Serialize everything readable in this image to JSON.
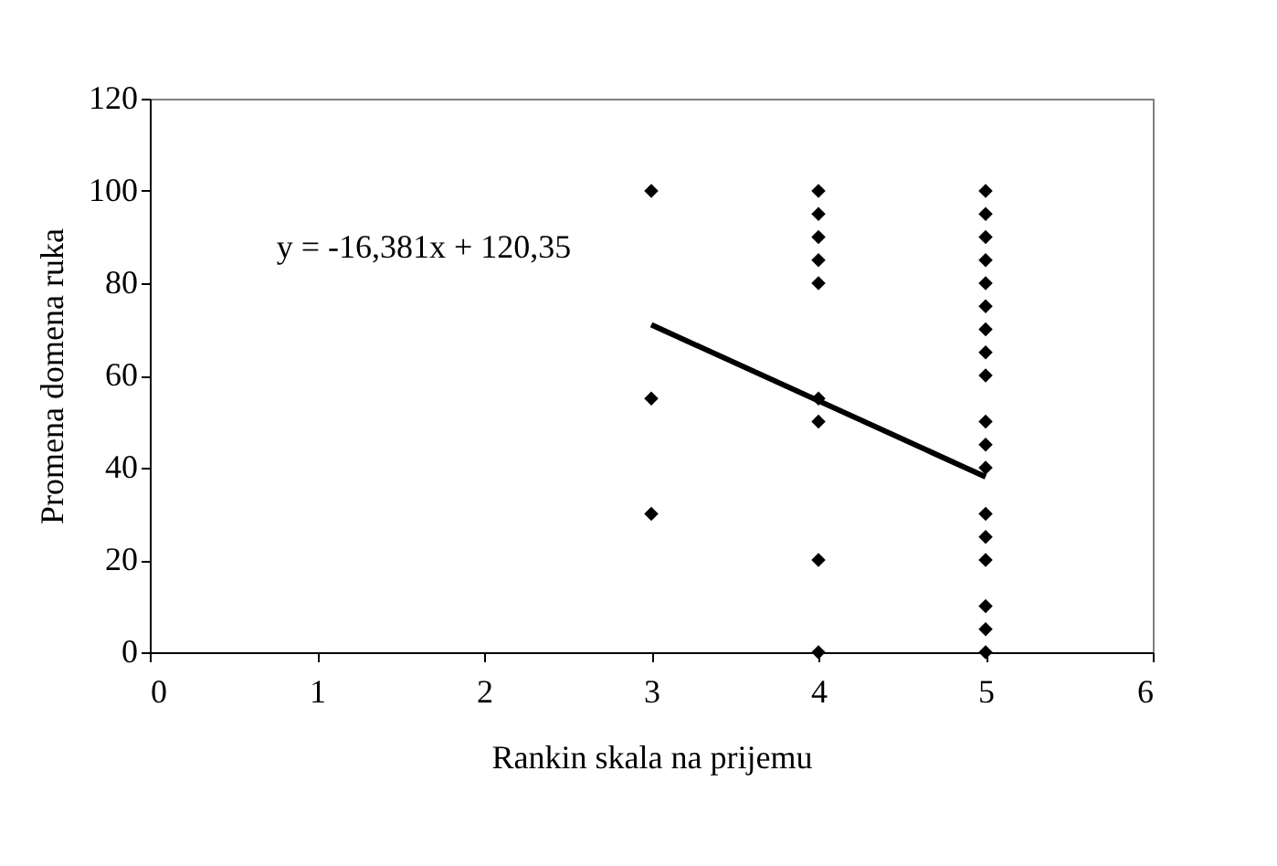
{
  "chart_data": {
    "type": "scatter",
    "xlabel": "Rankin skala na prijemu",
    "ylabel": "Promena domena ruka",
    "xlim": [
      0,
      6
    ],
    "xticks": [
      0,
      1,
      2,
      3,
      4,
      5,
      6
    ],
    "ylim": [
      0,
      120
    ],
    "yticks": [
      0,
      20,
      40,
      60,
      80,
      100,
      120
    ],
    "grid": false,
    "annotations": [
      "y = -16,381x + 120,35"
    ],
    "series": [
      {
        "color": "#000000",
        "marker": "diamond",
        "x": [
          3,
          3,
          3,
          4,
          4,
          4,
          4,
          4,
          4,
          4,
          4,
          4,
          5,
          5,
          5,
          5,
          5,
          5,
          5,
          5,
          5,
          5,
          5,
          5,
          5,
          5,
          5,
          5,
          5,
          5
        ],
        "values": [
          100,
          55,
          30,
          100,
          95,
          90,
          85,
          80,
          55,
          50,
          20,
          0,
          100,
          95,
          90,
          85,
          80,
          75,
          70,
          65,
          60,
          50,
          45,
          40,
          30,
          25,
          20,
          10,
          5,
          0
        ]
      },
      {
        "type": "line",
        "color": "#000000",
        "line_style": "solid",
        "marker": "none",
        "x": [
          3,
          5
        ],
        "values": [
          71,
          38
        ]
      }
    ]
  }
}
